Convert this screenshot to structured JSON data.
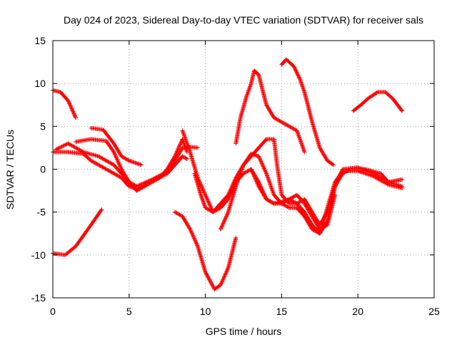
{
  "chart_data": {
    "type": "scatter",
    "title": "Day 024 of 2023, Sidereal Day-to-day VTEC variation (SDTVAR) for receiver sals",
    "xlabel": "GPS time / hours",
    "ylabel": "SDTVAR / TECUs",
    "xlim": [
      0,
      25
    ],
    "ylim": [
      -15,
      15
    ],
    "xticks": [
      0,
      5,
      10,
      15,
      20,
      25
    ],
    "yticks": [
      -15,
      -10,
      -5,
      0,
      5,
      10,
      15
    ],
    "grid": true,
    "marker": "+",
    "color": "#ff0000",
    "series": [
      {
        "name": "track-1",
        "points": [
          [
            0,
            9.2
          ],
          [
            0.5,
            9.0
          ],
          [
            1.0,
            8.0
          ],
          [
            1.5,
            6.0
          ]
        ]
      },
      {
        "name": "track-2",
        "points": [
          [
            0,
            -9.8
          ],
          [
            0.8,
            -10.0
          ],
          [
            1.5,
            -9.0
          ],
          [
            2.5,
            -6.5
          ],
          [
            3.2,
            -4.7
          ]
        ]
      },
      {
        "name": "track-3",
        "points": [
          [
            0,
            2.0
          ],
          [
            1.0,
            2.0
          ],
          [
            2.0,
            1.8
          ],
          [
            2.5,
            1.0
          ],
          [
            3.5,
            0
          ],
          [
            4.5,
            -1.0
          ],
          [
            5.0,
            -2.0
          ],
          [
            5.5,
            -2.3
          ],
          [
            6.5,
            -1.5
          ],
          [
            7.5,
            -0.5
          ],
          [
            8.0,
            0.5
          ],
          [
            8.5,
            1.5
          ],
          [
            8.8,
            1.2
          ]
        ]
      },
      {
        "name": "track-4",
        "points": [
          [
            0.2,
            2.3
          ],
          [
            1.0,
            3.0
          ],
          [
            1.5,
            2.5
          ],
          [
            2.0,
            2.0
          ],
          [
            3.0,
            1.5
          ],
          [
            4.0,
            0.5
          ],
          [
            4.5,
            -0.5
          ],
          [
            5.0,
            -1.5
          ],
          [
            5.5,
            -2.5
          ],
          [
            6.0,
            -2.0
          ],
          [
            7.0,
            -1.0
          ],
          [
            7.5,
            0
          ],
          [
            8.0,
            1.5
          ],
          [
            8.5,
            3.5
          ],
          [
            8.8,
            2.0
          ]
        ]
      },
      {
        "name": "track-5",
        "points": [
          [
            1.5,
            3.2
          ],
          [
            2.5,
            3.5
          ],
          [
            3.5,
            3.3
          ],
          [
            4.0,
            2.0
          ],
          [
            4.5,
            0
          ],
          [
            5.0,
            -1.5
          ],
          [
            5.5,
            -2.0
          ],
          [
            6.5,
            -1.2
          ],
          [
            7.5,
            -0.3
          ],
          [
            8.0,
            1.0
          ],
          [
            8.5,
            2.5
          ],
          [
            9.0,
            2.6
          ],
          [
            9.5,
            2.5
          ]
        ]
      },
      {
        "name": "track-6",
        "points": [
          [
            2.5,
            4.8
          ],
          [
            3.3,
            4.6
          ],
          [
            4.0,
            3.0
          ],
          [
            4.5,
            1.5
          ],
          [
            5.0,
            1.0
          ],
          [
            5.8,
            0.5
          ]
        ]
      },
      {
        "name": "track-7",
        "points": [
          [
            8.0,
            -5.0
          ],
          [
            8.5,
            -5.5
          ],
          [
            9.0,
            -7.0
          ],
          [
            9.5,
            -9.0
          ],
          [
            10.0,
            -12.0
          ],
          [
            10.6,
            -14.0
          ],
          [
            11.0,
            -13.5
          ],
          [
            11.5,
            -11.5
          ],
          [
            12.0,
            -8.0
          ]
        ]
      },
      {
        "name": "track-8",
        "points": [
          [
            8.5,
            4.5
          ],
          [
            9.0,
            2.0
          ],
          [
            9.5,
            -1.0
          ],
          [
            10.0,
            -3.0
          ],
          [
            10.5,
            -5.0
          ],
          [
            11.0,
            -4.0
          ],
          [
            11.5,
            -3.0
          ],
          [
            12.0,
            -1.0
          ],
          [
            12.5,
            0.5
          ],
          [
            13.0,
            1.5
          ],
          [
            13.5,
            2.5
          ],
          [
            14.0,
            3.5
          ],
          [
            14.5,
            3.5
          ],
          [
            14.7,
            0.5
          ],
          [
            15.0,
            -3.0
          ],
          [
            15.5,
            -4.0
          ],
          [
            16.0,
            -4.0
          ],
          [
            16.5,
            -3.5
          ],
          [
            17.0,
            -5.0
          ],
          [
            17.5,
            -6.5
          ],
          [
            18.0,
            -5.0
          ],
          [
            18.5,
            -2.0
          ],
          [
            19.0,
            -0.5
          ],
          [
            19.5,
            0
          ],
          [
            20.5,
            0
          ],
          [
            21.5,
            -0.5
          ],
          [
            22.0,
            -1.5
          ],
          [
            22.9,
            -1.2
          ]
        ]
      },
      {
        "name": "track-9",
        "points": [
          [
            9.3,
            -0.5
          ],
          [
            9.7,
            -3.0
          ],
          [
            10.0,
            -4.5
          ],
          [
            10.5,
            -5.0
          ],
          [
            11.0,
            -4.5
          ],
          [
            11.5,
            -3.5
          ],
          [
            12.0,
            -1.5
          ],
          [
            12.5,
            -0.5
          ],
          [
            13.0,
            0
          ],
          [
            13.5,
            -1.5
          ],
          [
            14.0,
            -3.5
          ],
          [
            14.5,
            -4.0
          ],
          [
            15.0,
            -3.8
          ],
          [
            15.5,
            -3.5
          ],
          [
            16.0,
            -4.0
          ],
          [
            16.5,
            -5.0
          ],
          [
            17.0,
            -6.5
          ],
          [
            17.5,
            -7.5
          ],
          [
            18.0,
            -6.0
          ],
          [
            18.5,
            -2.0
          ],
          [
            19.0,
            0
          ],
          [
            20.0,
            0.2
          ],
          [
            21.0,
            -0.5
          ],
          [
            22.0,
            -1.5
          ],
          [
            22.9,
            -2.0
          ]
        ]
      },
      {
        "name": "track-10",
        "points": [
          [
            11.0,
            -7.0
          ],
          [
            11.5,
            -5.0
          ],
          [
            12.0,
            -2.0
          ],
          [
            12.5,
            0.5
          ],
          [
            13.0,
            1.8
          ],
          [
            13.5,
            1.5
          ],
          [
            14.0,
            -0.5
          ],
          [
            14.5,
            -3.0
          ],
          [
            15.0,
            -4.0
          ],
          [
            15.5,
            -4.5
          ],
          [
            16.0,
            -4.5
          ],
          [
            16.5,
            -5.5
          ],
          [
            17.0,
            -7.0
          ],
          [
            17.5,
            -7.5
          ],
          [
            18.0,
            -4.5
          ],
          [
            18.5,
            -1.5
          ],
          [
            19.0,
            -0.2
          ],
          [
            20.0,
            -0.2
          ],
          [
            21.0,
            -0.8
          ],
          [
            22.0,
            -1.8
          ],
          [
            22.9,
            -2.2
          ]
        ]
      },
      {
        "name": "track-11",
        "points": [
          [
            13.0,
            0
          ],
          [
            13.5,
            -2.0
          ],
          [
            14.0,
            -3.5
          ],
          [
            14.5,
            -4.0
          ],
          [
            15.0,
            -4.0
          ],
          [
            15.5,
            -3.5
          ],
          [
            16.0,
            -3.0
          ],
          [
            16.5,
            -4.0
          ],
          [
            17.0,
            -5.5
          ],
          [
            17.5,
            -7.0
          ],
          [
            18.0,
            -6.5
          ],
          [
            18.5,
            -3.0
          ]
        ]
      },
      {
        "name": "track-12",
        "points": [
          [
            12.0,
            3.0
          ],
          [
            12.3,
            6.0
          ],
          [
            12.7,
            8.5
          ],
          [
            13.0,
            10.0
          ],
          [
            13.2,
            11.5
          ],
          [
            13.5,
            11.0
          ],
          [
            14.0,
            7.5
          ],
          [
            14.5,
            6.0
          ],
          [
            15.0,
            5.5
          ],
          [
            15.5,
            5.0
          ],
          [
            16.0,
            4.5
          ],
          [
            16.5,
            2.0
          ]
        ]
      },
      {
        "name": "track-13",
        "points": [
          [
            15.0,
            12.2
          ],
          [
            15.3,
            12.8
          ],
          [
            15.8,
            12.0
          ],
          [
            16.2,
            10.5
          ],
          [
            16.5,
            9.0
          ],
          [
            17.0,
            5.5
          ],
          [
            17.5,
            2.5
          ],
          [
            18.0,
            1.0
          ],
          [
            18.4,
            0.5
          ]
        ]
      },
      {
        "name": "track-14",
        "points": [
          [
            19.7,
            6.8
          ],
          [
            20.2,
            7.5
          ],
          [
            20.7,
            8.3
          ],
          [
            21.3,
            9.0
          ],
          [
            21.8,
            9.0
          ],
          [
            22.3,
            8.2
          ],
          [
            22.9,
            6.8
          ]
        ]
      }
    ]
  }
}
